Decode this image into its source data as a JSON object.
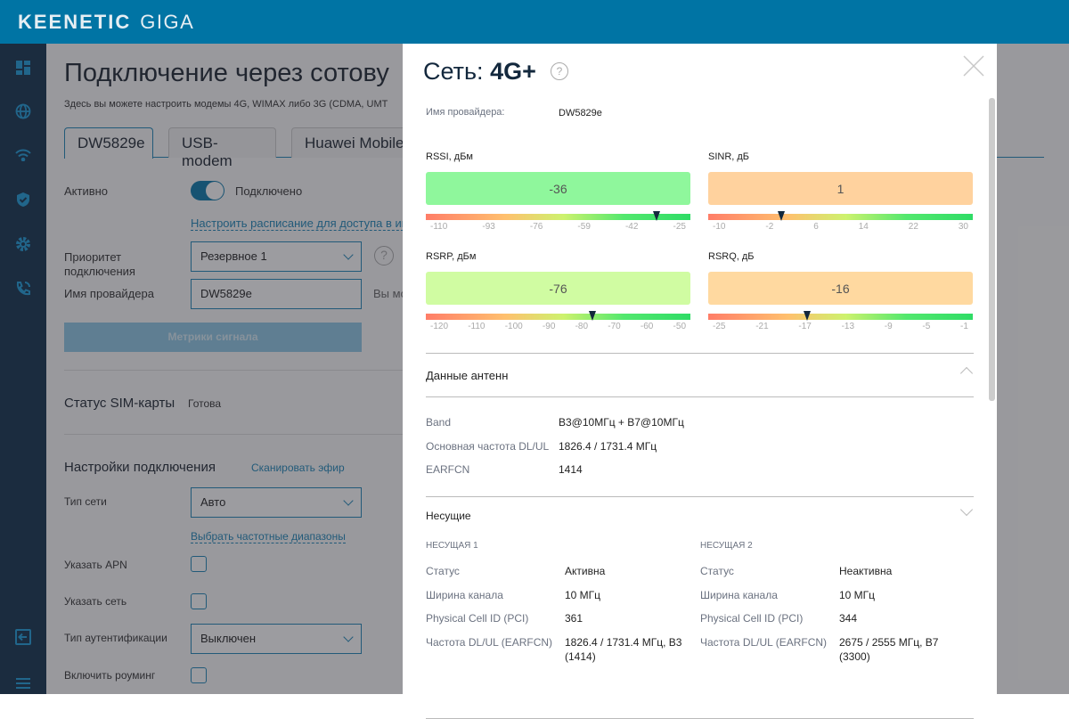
{
  "header": {
    "brand": "KEENETIC",
    "model": "GIGA"
  },
  "sidebar": {
    "icons": [
      "dashboard-icon",
      "globe-icon",
      "wifi-icon",
      "shield-icon",
      "gear-icon",
      "phone-icon"
    ],
    "bottom_icons": [
      "logout-icon",
      "menu-icon"
    ]
  },
  "page": {
    "title": "Подключение через сотову",
    "subtitle": "Здесь вы можете настроить модемы 4G, WIMAX либо 3G (CDMA, UMT",
    "tabs": [
      "DW5829e",
      "USB-modem",
      "Huawei Mobile"
    ],
    "active_label": "Активно",
    "active_state": "Подключено",
    "schedule_link": "Настроить расписание для доступа в интер",
    "priority_label": "Приоритет подключения",
    "priority_value": "Резервное 1",
    "provider_label": "Имя провайдера",
    "provider_value": "DW5829e",
    "provider_hint": "Вы мо",
    "metrics_button": "Метрики сигнала",
    "sim_label": "Статус SIM-карты",
    "sim_value": "Готова",
    "settings_title": "Настройки подключения",
    "scan_link": "Сканировать эфир",
    "net_type_label": "Тип сети",
    "net_type_value": "Авто",
    "bands_link": "Выбрать частотные диапазоны",
    "apn_label": "Указать APN",
    "network_label": "Указать сеть",
    "auth_label": "Тип аутентификации",
    "auth_value": "Выключен",
    "roaming_label": "Включить роуминг"
  },
  "modal": {
    "title_prefix": "Сеть:",
    "title_net": "4G+",
    "provider_label": "Имя провайдера:",
    "provider_value": "DW5829e",
    "gauges": [
      {
        "label": "RSSI, дБм",
        "value": "-36",
        "num": -36,
        "min": -110,
        "max": -25,
        "color": "#8ff79c",
        "ticks": [
          "-110",
          "-93",
          "-76",
          "-59",
          "-42",
          "-25"
        ]
      },
      {
        "label": "SINR, дБ",
        "value": "1",
        "num": 1,
        "min": -10,
        "max": 30,
        "color": "#ffd29e",
        "ticks": [
          "-10",
          "-2",
          "6",
          "14",
          "22",
          "30"
        ]
      },
      {
        "label": "RSRP, дБм",
        "value": "-76",
        "num": -76,
        "min": -120,
        "max": -50,
        "color": "#d0fca2",
        "ticks": [
          "-120",
          "-110",
          "-100",
          "-90",
          "-80",
          "-70",
          "-60",
          "-50"
        ]
      },
      {
        "label": "RSRQ, дБ",
        "value": "-16",
        "num": -16,
        "min": -25,
        "max": -1,
        "color": "#ffd9a0",
        "ticks": [
          "-25",
          "-21",
          "-17",
          "-13",
          "-9",
          "-5",
          "-1"
        ]
      }
    ],
    "antenna_title": "Данные антенн",
    "antenna": [
      {
        "k": "Band",
        "v": "B3@10МГц + B7@10МГц"
      },
      {
        "k": "Основная частота DL/UL",
        "v": "1826.4 / 1731.4 МГц"
      },
      {
        "k": "EARFCN",
        "v": "1414"
      }
    ],
    "carriers_title": "Несущие",
    "carriers": [
      {
        "title": "НЕСУЩАЯ 1",
        "rows": [
          {
            "k": "Статус",
            "v": "Активна"
          },
          {
            "k": "Ширина канала",
            "v": "10 МГц"
          },
          {
            "k": "Physical Cell ID (PCI)",
            "v": "361"
          },
          {
            "k": "Частота DL/UL (EARFCN)",
            "v": "1826.4 / 1731.4 МГц, B3 (1414)"
          }
        ]
      },
      {
        "title": "НЕСУЩАЯ 2",
        "rows": [
          {
            "k": "Статус",
            "v": "Неактивна"
          },
          {
            "k": "Ширина канала",
            "v": "10 МГц"
          },
          {
            "k": "Physical Cell ID (PCI)",
            "v": "344"
          },
          {
            "k": "Частота DL/UL (EARFCN)",
            "v": "2675 / 2555 МГц, B7 (3300)"
          }
        ]
      }
    ]
  }
}
